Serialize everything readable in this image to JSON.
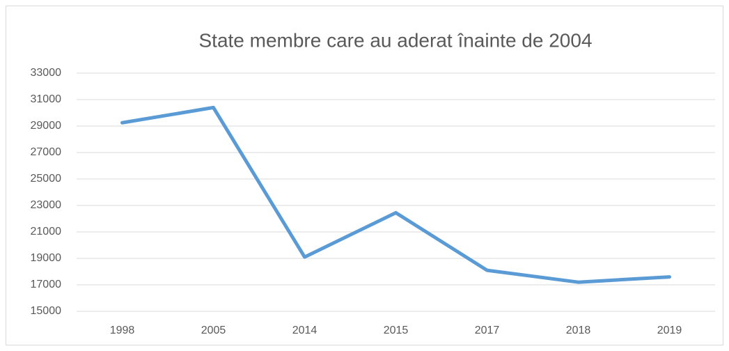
{
  "chart_data": {
    "type": "line",
    "title": "State membre care au aderat înainte de 2004",
    "categories": [
      "1998",
      "2005",
      "2014",
      "2015",
      "2017",
      "2018",
      "2019"
    ],
    "series": [
      {
        "name": "State membre care au aderat înainte de 2004",
        "color": "#5b9bd5",
        "values": [
          29250,
          30400,
          19100,
          22450,
          18100,
          17200,
          17600
        ]
      }
    ],
    "ylim": [
      15000,
      33000
    ],
    "yticks": [
      15000,
      17000,
      19000,
      21000,
      23000,
      25000,
      27000,
      29000,
      31000,
      33000
    ],
    "grid": true
  }
}
